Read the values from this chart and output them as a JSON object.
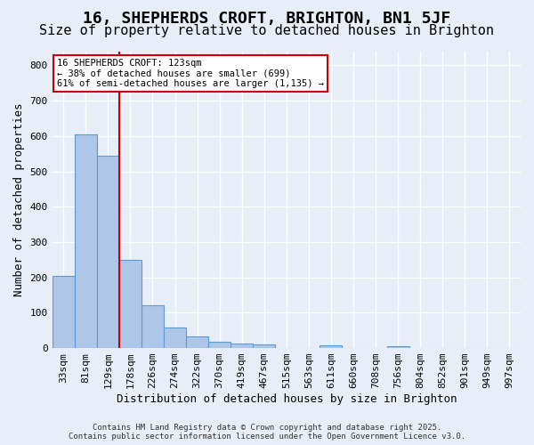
{
  "title": "16, SHEPHERDS CROFT, BRIGHTON, BN1 5JF",
  "subtitle": "Size of property relative to detached houses in Brighton",
  "xlabel": "Distribution of detached houses by size in Brighton",
  "ylabel": "Number of detached properties",
  "bar_values": [
    203,
    605,
    545,
    250,
    120,
    57,
    32,
    18,
    14,
    10,
    0,
    0,
    8,
    0,
    0,
    5,
    0,
    0,
    0,
    0,
    0
  ],
  "bar_labels": [
    "33sqm",
    "81sqm",
    "129sqm",
    "178sqm",
    "226sqm",
    "274sqm",
    "322sqm",
    "370sqm",
    "419sqm",
    "467sqm",
    "515sqm",
    "563sqm",
    "611sqm",
    "660sqm",
    "708sqm",
    "756sqm",
    "804sqm",
    "852sqm",
    "901sqm",
    "949sqm",
    "997sqm"
  ],
  "bar_color": "#aec6e8",
  "bar_edge_color": "#5b9bd5",
  "background_color": "#e8eef7",
  "grid_color": "#ffffff",
  "vline_x": 2.5,
  "vline_color": "#cc0000",
  "annotation_text": "16 SHEPHERDS CROFT: 123sqm\n← 38% of detached houses are smaller (699)\n61% of semi-detached houses are larger (1,135) →",
  "annotation_box_color": "#cc0000",
  "annotation_bg": "#ffffff",
  "ylim": [
    0,
    840
  ],
  "yticks": [
    0,
    100,
    200,
    300,
    400,
    500,
    600,
    700,
    800
  ],
  "footer": "Contains HM Land Registry data © Crown copyright and database right 2025.\nContains public sector information licensed under the Open Government Licence v3.0.",
  "title_fontsize": 13,
  "subtitle_fontsize": 11,
  "axis_label_fontsize": 9,
  "tick_fontsize": 8
}
